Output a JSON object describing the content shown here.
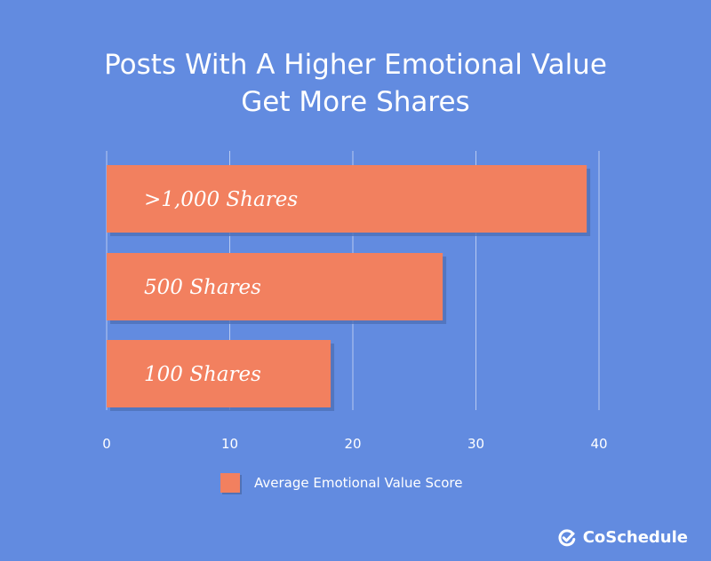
{
  "title_line1": "Posts With A Higher Emotional Value",
  "title_line2": "Get More Shares",
  "legend_label": "Average Emotional Value Score",
  "brand": "CoSchedule",
  "colors": {
    "background": "#628be0",
    "bar": "#f2805f",
    "bar_shadow": "#4f70b8",
    "grid": "#ffffff",
    "text": "#ffffff"
  },
  "chart_data": {
    "type": "bar",
    "orientation": "horizontal",
    "categories": [
      ">1,000 Shares",
      "500 Shares",
      "100 Shares"
    ],
    "values": [
      39,
      27.3,
      18.2
    ],
    "xlim": [
      0,
      40
    ],
    "xticks": [
      "0",
      "10",
      "20",
      "30",
      "40"
    ],
    "grid": true,
    "legend": "bottom-center"
  }
}
